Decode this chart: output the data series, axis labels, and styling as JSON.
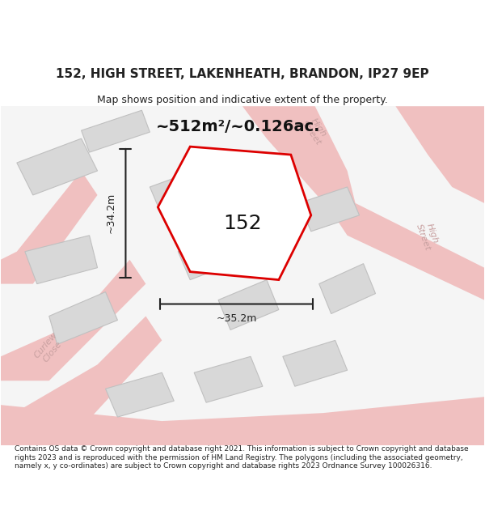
{
  "title_line1": "152, HIGH STREET, LAKENHEATH, BRANDON, IP27 9EP",
  "title_line2": "Map shows position and indicative extent of the property.",
  "footer_text": "Contains OS data © Crown copyright and database right 2021. This information is subject to Crown copyright and database rights 2023 and is reproduced with the permission of HM Land Registry. The polygons (including the associated geometry, namely x, y co-ordinates) are subject to Crown copyright and database rights 2023 Ordnance Survey 100026316.",
  "area_label": "~512m²/~0.126ac.",
  "property_number": "152",
  "width_label": "~35.2m",
  "height_label": "~34.2m",
  "map_bg": "#f5f5f5",
  "road_color": "#f0c0c0",
  "building_color": "#d8d8d8",
  "building_outline": "#c0c0c0",
  "property_color": "#ffffff",
  "property_outline": "#dd0000",
  "street_label_color": "#c8a0a0",
  "dim_color": "#222222",
  "title_color": "#222222",
  "footer_color": "#222222",
  "footer_bg": "#ffffff",
  "map_region": [
    0.0,
    0.08,
    1.0,
    0.78
  ]
}
